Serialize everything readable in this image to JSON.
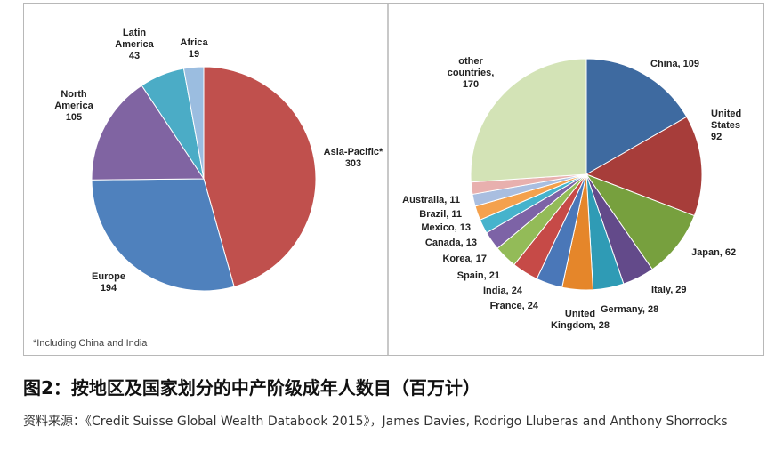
{
  "chart_data": [
    {
      "type": "pie",
      "categories": [
        "Asia-Pacific*",
        "Europe",
        "North America",
        "Latin America",
        "Africa"
      ],
      "values": [
        303,
        194,
        105,
        43,
        19
      ],
      "colors": [
        "#c0504d",
        "#4f81bd",
        "#8064a2",
        "#4bacc6",
        "#9bbde0"
      ],
      "labels": [
        [
          "Asia-Pacific*",
          "303"
        ],
        [
          "Europe",
          "194"
        ],
        [
          "North",
          "America",
          "105"
        ],
        [
          "Latin",
          "America",
          "43"
        ],
        [
          "Africa",
          "19"
        ]
      ],
      "footnote": "*Including China and India"
    },
    {
      "type": "pie",
      "categories": [
        "China",
        "United States",
        "Japan",
        "Italy",
        "Germany",
        "United Kingdom",
        "France",
        "India",
        "Spain",
        "Korea",
        "Canada",
        "Mexico",
        "Brazil",
        "Australia",
        "other countries"
      ],
      "values": [
        109,
        92,
        62,
        29,
        28,
        28,
        24,
        24,
        21,
        17,
        13,
        13,
        11,
        11,
        170
      ],
      "colors": [
        "#3e6aa0",
        "#a73d3a",
        "#77a03e",
        "#634a8a",
        "#2f9bb5",
        "#e5862a",
        "#4a77b8",
        "#c64a47",
        "#93bb58",
        "#7d63a6",
        "#46b3cc",
        "#f4a14d",
        "#a9bee0",
        "#e8b0ae",
        "#d3e3b6",
        "#b8aecd"
      ],
      "labels": [
        [
          "China, 109"
        ],
        [
          "United",
          "States",
          "92"
        ],
        [
          "Japan, 62"
        ],
        [
          "Italy, 29"
        ],
        [
          "Germany, 28"
        ],
        [
          "United",
          "Kingdom, 28"
        ],
        [
          "France, 24"
        ],
        [
          "India, 24"
        ],
        [
          "Spain, 21"
        ],
        [
          "Korea, 17"
        ],
        [
          "Canada, 13"
        ],
        [
          "Mexico, 13"
        ],
        [
          "Brazil, 11"
        ],
        [
          "Australia, 11"
        ],
        [
          "other",
          "countries,",
          "170"
        ]
      ]
    }
  ],
  "caption": {
    "title": "图2：按地区及国家划分的中产阶级成年人数目（百万计）",
    "source": "资料来源：《Credit Suisse Global Wealth Databook 2015》，James Davies, Rodrigo Lluberas and Anthony Shorrocks"
  }
}
